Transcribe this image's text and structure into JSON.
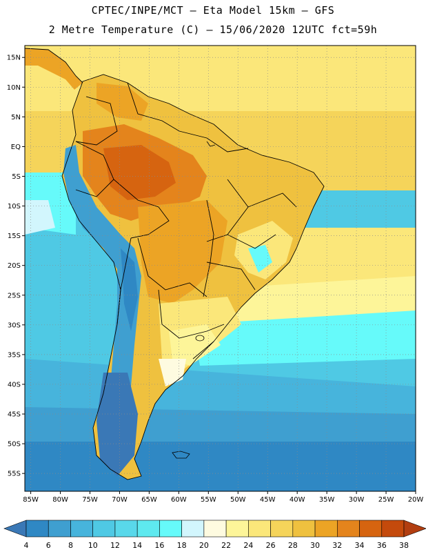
{
  "header": {
    "line1": "CPTEC/INPE/MCT –  Eta Model 15km – GFS",
    "line2": "2 Metre Temperature (C) – 15/06/2020 12UTC fct=59h"
  },
  "map": {
    "lat_labels": [
      "15N",
      "10N",
      "5N",
      "EQ",
      "5S",
      "10S",
      "15S",
      "20S",
      "25S",
      "30S",
      "35S",
      "40S",
      "45S",
      "50S",
      "55S"
    ],
    "lon_labels": [
      "85W",
      "80W",
      "75W",
      "70W",
      "65W",
      "60W",
      "55W",
      "50W",
      "45W",
      "40W",
      "35W",
      "30W",
      "25W",
      "20W"
    ],
    "lat_range": [
      -58,
      17
    ],
    "lon_range": [
      -86,
      -20
    ]
  },
  "colorbar": {
    "labels": [
      "4",
      "6",
      "8",
      "10",
      "12",
      "14",
      "16",
      "18",
      "20",
      "22",
      "24",
      "26",
      "28",
      "30",
      "32",
      "34",
      "36",
      "38"
    ],
    "colors": [
      "#3a78b6",
      "#2f88c4",
      "#3f9fd0",
      "#47b4dc",
      "#4fc9e4",
      "#59d8ea",
      "#5ee9ef",
      "#66fafa",
      "#d2f6fd",
      "#fefbe0",
      "#fdf599",
      "#fbe77a",
      "#f5d45a",
      "#efc13f",
      "#eca425",
      "#e4841c",
      "#d66410",
      "#c44a0c",
      "#b23e10"
    ]
  }
}
